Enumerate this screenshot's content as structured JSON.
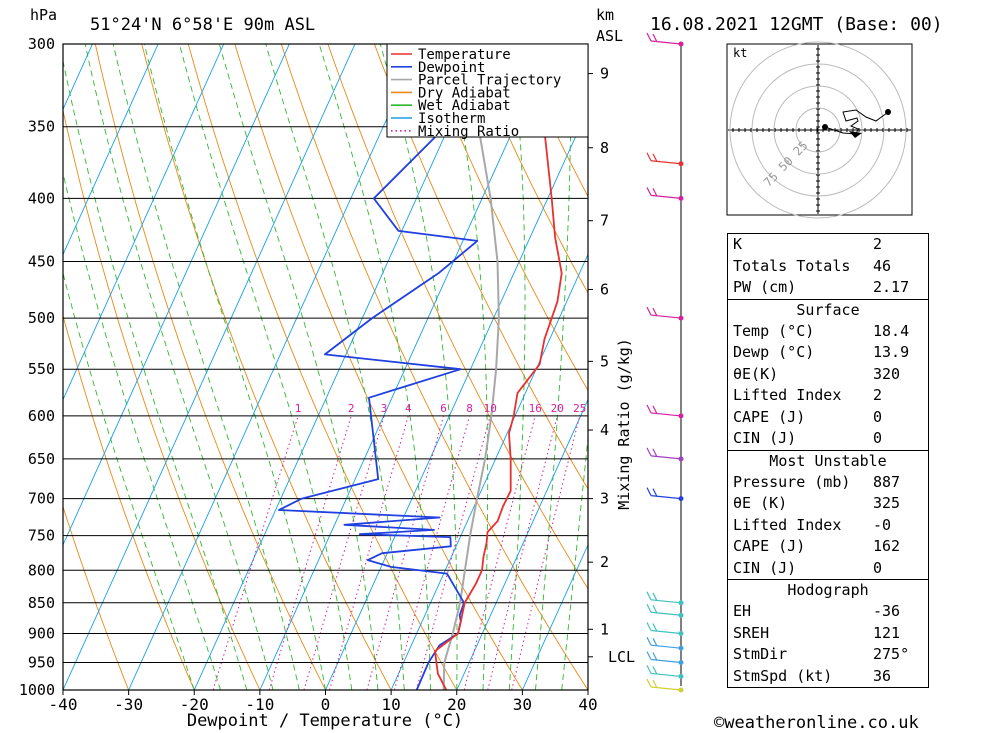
{
  "header": {
    "pressure_unit": "hPa",
    "location": "51°24'N  6°58'E  90m  ASL",
    "height_unit_top": "km",
    "height_unit_bottom": "ASL",
    "datetime": "16.08.2021  12GMT  (Base: 00)"
  },
  "footer": {
    "copyright": "©weatheronline.co.uk"
  },
  "chart_data": {
    "type": "line",
    "title": "",
    "xlabel": "Dewpoint / Temperature (°C)",
    "ylabel": "hPa",
    "y_scale": "log",
    "xlim": [
      -40,
      40
    ],
    "ylim": [
      1000,
      300
    ],
    "x_ticks": [
      -40,
      -30,
      -20,
      -10,
      0,
      10,
      20,
      30,
      40
    ],
    "pressure_levels": [
      300,
      350,
      400,
      450,
      500,
      550,
      600,
      650,
      700,
      750,
      800,
      850,
      900,
      950,
      1000
    ],
    "height_axis": {
      "label": "km ASL",
      "ticks": [
        {
          "km": 9,
          "p": 317
        },
        {
          "km": 8,
          "p": 364
        },
        {
          "km": 7,
          "p": 417
        },
        {
          "km": 6,
          "p": 474
        },
        {
          "km": 5,
          "p": 542
        },
        {
          "km": 4,
          "p": 616
        },
        {
          "km": 3,
          "p": 700
        },
        {
          "km": 2,
          "p": 788
        },
        {
          "km": 1,
          "p": 893
        }
      ],
      "lcl_label": "LCL",
      "lcl_pressure": 940
    },
    "legend": {
      "position": "top-right",
      "entries": [
        {
          "label": "Temperature",
          "color": "#e83030",
          "style": "solid"
        },
        {
          "label": "Dewpoint",
          "color": "#2040e0",
          "style": "solid"
        },
        {
          "label": "Parcel Trajectory",
          "color": "#a8a8a8",
          "style": "solid"
        },
        {
          "label": "Dry Adiabat",
          "color": "#e88a18",
          "style": "solid"
        },
        {
          "label": "Wet Adiabat",
          "color": "#30b830",
          "style": "solid"
        },
        {
          "label": "Isotherm",
          "color": "#18a0e8",
          "style": "solid"
        },
        {
          "label": "Mixing Ratio",
          "color": "#d81f9f",
          "style": "dotted"
        }
      ]
    },
    "mixing_ratio": {
      "label": "Mixing Ratio (g/kg)",
      "values": [
        1,
        2,
        3,
        4,
        6,
        8,
        10,
        16,
        20,
        25
      ]
    },
    "series": [
      {
        "name": "Temperature",
        "color": "#e83030",
        "points": [
          {
            "p": 1000,
            "t": 18.4
          },
          {
            "p": 970,
            "t": 16
          },
          {
            "p": 950,
            "t": 15
          },
          {
            "p": 930,
            "t": 14
          },
          {
            "p": 900,
            "t": 16.3
          },
          {
            "p": 880,
            "t": 15.9
          },
          {
            "p": 850,
            "t": 15.2
          },
          {
            "p": 820,
            "t": 15.6
          },
          {
            "p": 800,
            "t": 15.6
          },
          {
            "p": 780,
            "t": 14.9
          },
          {
            "p": 760,
            "t": 14.4
          },
          {
            "p": 745,
            "t": 13.8
          },
          {
            "p": 730,
            "t": 14.6
          },
          {
            "p": 710,
            "t": 14.4
          },
          {
            "p": 690,
            "t": 14.5
          },
          {
            "p": 650,
            "t": 12.3
          },
          {
            "p": 620,
            "t": 10.3
          },
          {
            "p": 600,
            "t": 9.8
          },
          {
            "p": 575,
            "t": 8.8
          },
          {
            "p": 545,
            "t": 10.2
          },
          {
            "p": 520,
            "t": 9.2
          },
          {
            "p": 485,
            "t": 8.6
          },
          {
            "p": 460,
            "t": 7.3
          },
          {
            "p": 430,
            "t": 3.8
          },
          {
            "p": 400,
            "t": 0.6
          },
          {
            "p": 350,
            "t": -5.5
          },
          {
            "p": 300,
            "t": -14.5
          }
        ]
      },
      {
        "name": "Dewpoint",
        "color": "#2040e0",
        "points": [
          {
            "p": 1000,
            "t": 13.9
          },
          {
            "p": 950,
            "t": 13.8
          },
          {
            "p": 920,
            "t": 14.3
          },
          {
            "p": 900,
            "t": 16.3
          },
          {
            "p": 880,
            "t": 15.9
          },
          {
            "p": 870,
            "t": 15.3
          },
          {
            "p": 850,
            "t": 15.1
          },
          {
            "p": 805,
            "t": 10.5
          },
          {
            "p": 795,
            "t": 1.5
          },
          {
            "p": 785,
            "t": -2.5
          },
          {
            "p": 775,
            "t": -0.8
          },
          {
            "p": 765,
            "t": 9.2
          },
          {
            "p": 752,
            "t": 8.5
          },
          {
            "p": 748,
            "t": -5.5
          },
          {
            "p": 742,
            "t": 5.5
          },
          {
            "p": 735,
            "t": -8.5
          },
          {
            "p": 725,
            "t": 5.5
          },
          {
            "p": 715,
            "t": -19.5
          },
          {
            "p": 700,
            "t": -16.8
          },
          {
            "p": 675,
            "t": -6.5
          },
          {
            "p": 580,
            "t": -13.5
          },
          {
            "p": 550,
            "t": -1.5
          },
          {
            "p": 535,
            "t": -23.2
          },
          {
            "p": 500,
            "t": -18.5
          },
          {
            "p": 460,
            "t": -11.5
          },
          {
            "p": 433,
            "t": -7.8
          },
          {
            "p": 425,
            "t": -20.5
          },
          {
            "p": 400,
            "t": -26.5
          },
          {
            "p": 320,
            "t": -16.5
          },
          {
            "p": 300,
            "t": -7.8
          }
        ]
      },
      {
        "name": "Parcel Trajectory",
        "color": "#a8a8a8",
        "points": [
          {
            "p": 1000,
            "t": 18.0
          },
          {
            "p": 950,
            "t": 16.2
          },
          {
            "p": 900,
            "t": 15.5
          },
          {
            "p": 850,
            "t": 14.5
          },
          {
            "p": 800,
            "t": 13.0
          },
          {
            "p": 750,
            "t": 11.4
          },
          {
            "p": 700,
            "t": 9.9
          },
          {
            "p": 650,
            "t": 8.4
          },
          {
            "p": 600,
            "t": 6.4
          },
          {
            "p": 550,
            "t": 3.9
          },
          {
            "p": 500,
            "t": 0.8
          },
          {
            "p": 450,
            "t": -3.3
          },
          {
            "p": 400,
            "t": -8.7
          },
          {
            "p": 350,
            "t": -15.5
          },
          {
            "p": 325,
            "t": -18.5
          }
        ]
      }
    ],
    "wind_barbs": [
      {
        "p": 1000,
        "color": "#d0d030"
      },
      {
        "p": 975,
        "color": "#40c0c0"
      },
      {
        "p": 950,
        "color": "#40a0e0"
      },
      {
        "p": 925,
        "color": "#40a0e0"
      },
      {
        "p": 900,
        "color": "#40c0c0"
      },
      {
        "p": 870,
        "color": "#40c0c0"
      },
      {
        "p": 850,
        "color": "#40c0c0"
      },
      {
        "p": 700,
        "color": "#2040e0"
      },
      {
        "p": 650,
        "color": "#a040c0"
      },
      {
        "p": 600,
        "color": "#d81f9f"
      },
      {
        "p": 500,
        "color": "#d81f9f"
      },
      {
        "p": 400,
        "color": "#d81f9f"
      },
      {
        "p": 375,
        "color": "#e83030"
      },
      {
        "p": 300,
        "color": "#d81f9f"
      }
    ]
  },
  "hodograph": {
    "unit": "kt",
    "ring_labels": [
      "25",
      "50",
      "75"
    ]
  },
  "indices": {
    "top": [
      {
        "label": "K",
        "value": "2"
      },
      {
        "label": "Totals Totals",
        "value": "46"
      },
      {
        "label": "PW (cm)",
        "value": "2.17"
      }
    ],
    "surface": {
      "title": "Surface",
      "rows": [
        {
          "label": "Temp (°C)",
          "value": "18.4"
        },
        {
          "label": "Dewp (°C)",
          "value": "13.9"
        },
        {
          "label": "θE(K)",
          "value": "320"
        },
        {
          "label": "Lifted Index",
          "value": "2"
        },
        {
          "label": "CAPE (J)",
          "value": "0"
        },
        {
          "label": "CIN (J)",
          "value": "0"
        }
      ]
    },
    "most_unstable": {
      "title": "Most Unstable",
      "rows": [
        {
          "label": "Pressure (mb)",
          "value": "887"
        },
        {
          "label": "θE (K)",
          "value": "325"
        },
        {
          "label": "Lifted Index",
          "value": "-0"
        },
        {
          "label": "CAPE (J)",
          "value": "162"
        },
        {
          "label": "CIN (J)",
          "value": "0"
        }
      ]
    },
    "hodograph": {
      "title": "Hodograph",
      "rows": [
        {
          "label": "EH",
          "value": "-36"
        },
        {
          "label": "SREH",
          "value": "121"
        },
        {
          "label": "StmDir",
          "value": "275°"
        },
        {
          "label": "StmSpd (kt)",
          "value": "36"
        }
      ]
    }
  }
}
